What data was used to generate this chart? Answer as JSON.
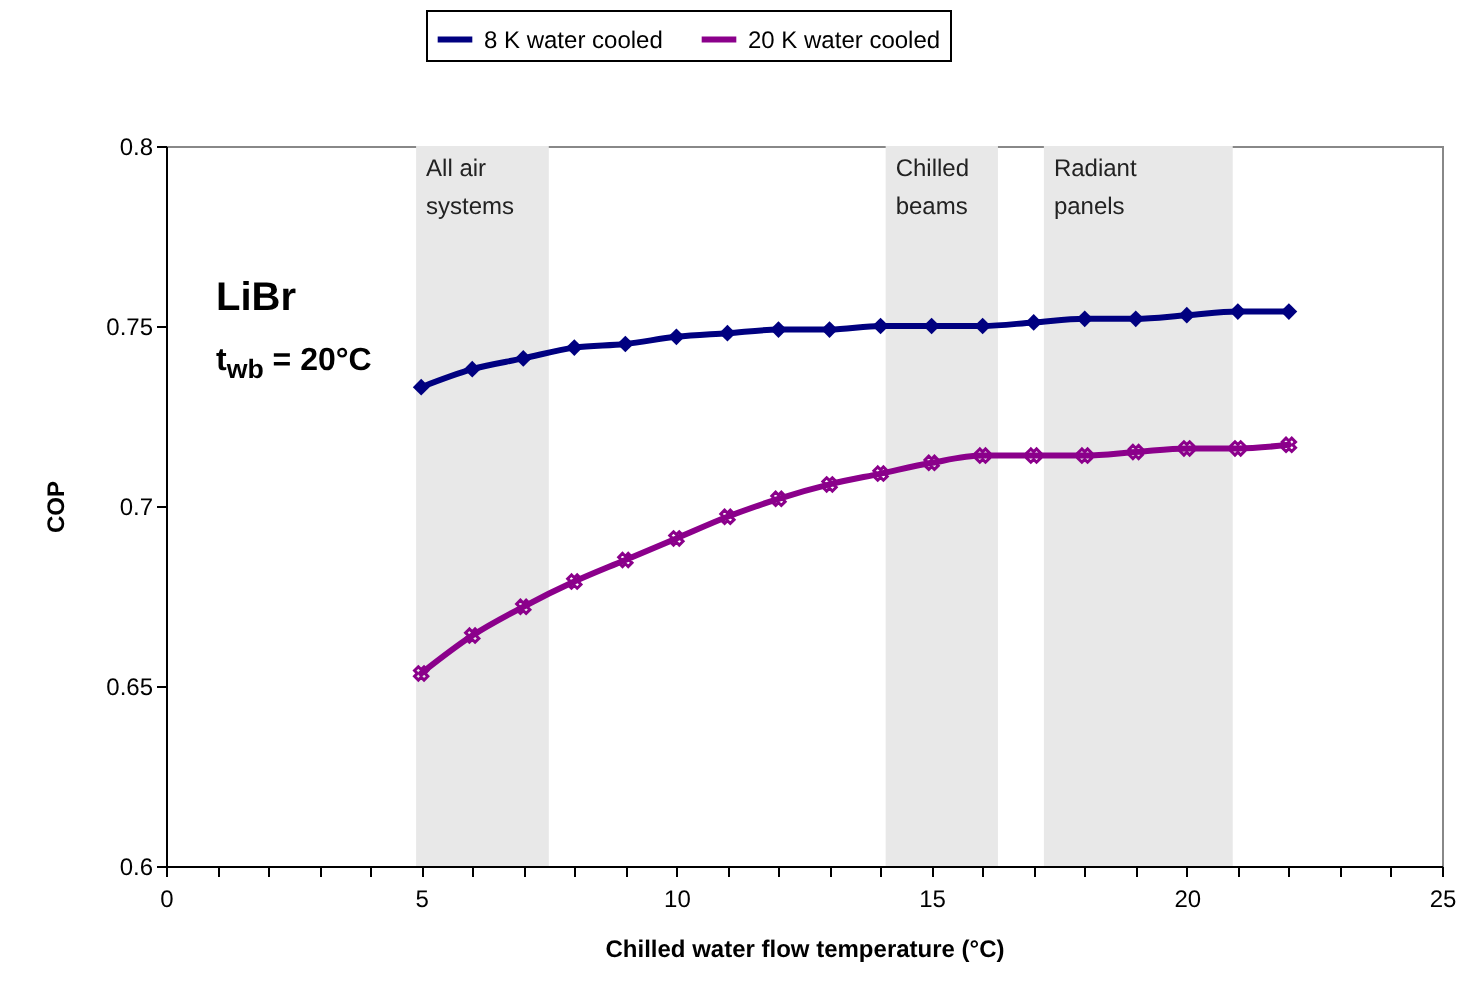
{
  "chart_data": {
    "type": "line",
    "xlabel": "Chilled water flow temperature (°C)",
    "ylabel": "COP",
    "x": [
      5,
      6,
      7,
      8,
      9,
      10,
      11,
      12,
      13,
      14,
      15,
      16,
      17,
      18,
      19,
      20,
      21,
      22
    ],
    "series": [
      {
        "name": "8 K water cooled",
        "color": "#000080",
        "marker": "diamond",
        "values": [
          0.733,
          0.738,
          0.741,
          0.744,
          0.745,
          0.747,
          0.748,
          0.749,
          0.749,
          0.75,
          0.75,
          0.75,
          0.751,
          0.752,
          0.752,
          0.753,
          0.754,
          0.754
        ]
      },
      {
        "name": "20 K water cooled",
        "color": "#8b008b",
        "marker": "cross",
        "values": [
          0.6535,
          0.664,
          0.672,
          0.679,
          0.685,
          0.691,
          0.697,
          0.702,
          0.706,
          0.709,
          0.712,
          0.714,
          0.714,
          0.714,
          0.715,
          0.716,
          0.716,
          0.717
        ]
      }
    ],
    "xlim": [
      0,
      25
    ],
    "ylim": [
      0.6,
      0.8
    ],
    "xticks": [
      0,
      {
        "value": 1,
        "label": null
      },
      {
        "value": 2,
        "label": null
      },
      {
        "value": 3,
        "label": null
      },
      {
        "value": 4,
        "label": null
      },
      5,
      {
        "value": 6,
        "label": null
      },
      {
        "value": 7,
        "label": null
      },
      {
        "value": 8,
        "label": null
      },
      {
        "value": 9,
        "label": null
      },
      10,
      {
        "value": 11,
        "label": null
      },
      {
        "value": 12,
        "label": null
      },
      {
        "value": 13,
        "label": null
      },
      {
        "value": 14,
        "label": null
      },
      15,
      {
        "value": 16,
        "label": null
      },
      {
        "value": 17,
        "label": null
      },
      {
        "value": 18,
        "label": null
      },
      {
        "value": 19,
        "label": null
      },
      20,
      {
        "value": 21,
        "label": null
      },
      {
        "value": 22,
        "label": null
      },
      {
        "value": 23,
        "label": null
      },
      {
        "value": 24,
        "label": null
      },
      25
    ],
    "yticks": [
      0.6,
      0.65,
      0.7,
      0.75,
      0.8
    ],
    "bands": [
      {
        "axis": "x",
        "from": 4.9,
        "to": 7.5,
        "label": "All air systems",
        "color": "#e8e8e8"
      },
      {
        "axis": "x",
        "from": 14.1,
        "to": 16.3,
        "label": "Chilled beams",
        "color": "#e8e8e8"
      },
      {
        "axis": "x",
        "from": 17.2,
        "to": 20.9,
        "label": "Radiant panels",
        "color": "#e8e8e8"
      }
    ],
    "annotations": [
      "LiBr",
      "t$_{wb}$ = 20°C"
    ],
    "grid": false,
    "legend": "top",
    "line_style": "solid"
  }
}
